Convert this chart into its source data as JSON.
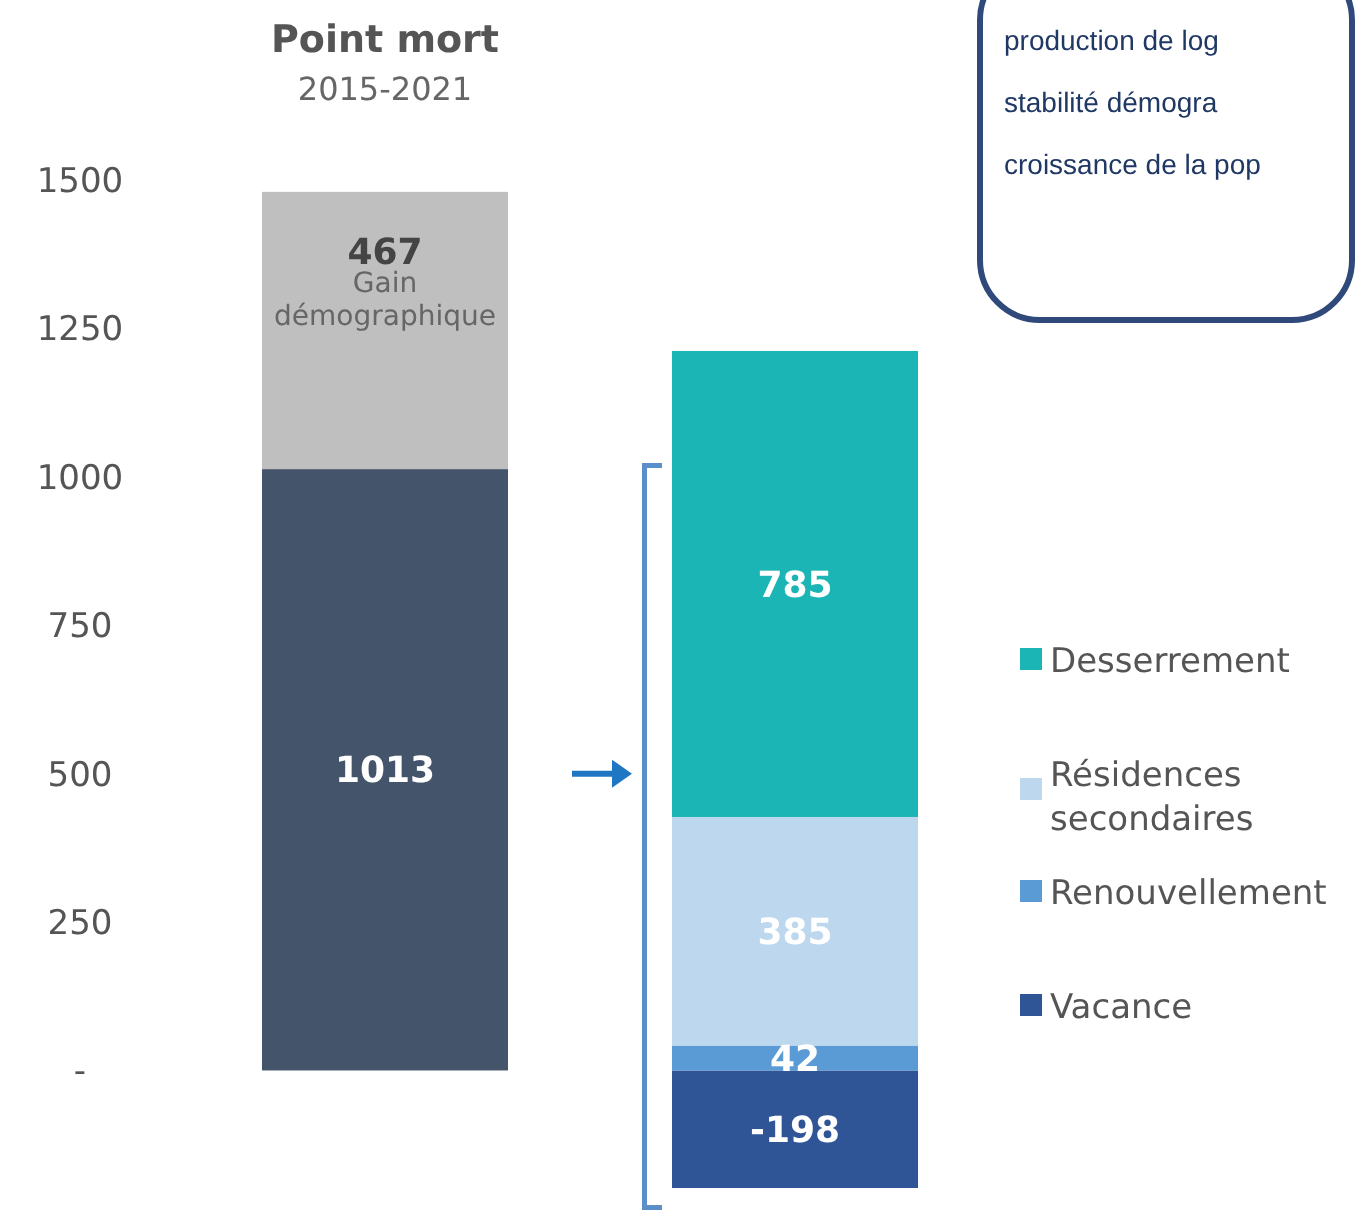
{
  "chart_data": {
    "type": "bar",
    "title": "Point mort",
    "subtitle": "2015-2021",
    "categories": [
      null,
      null
    ],
    "stacked": true,
    "series": [
      {
        "color": "#44546a",
        "values": [
          1013,
          null
        ]
      },
      {
        "color": "#bfbfbf",
        "values": [
          467,
          null
        ]
      },
      {
        "name": "Vacance",
        "color": "#2f5597",
        "values": [
          null,
          -198
        ]
      },
      {
        "name": "Renouvellement",
        "color": "#5b9bd5",
        "values": [
          null,
          42
        ]
      },
      {
        "name": "Résidences secondaires",
        "color": "#bdd7ee",
        "values": [
          null,
          385
        ]
      },
      {
        "name": "Desserrement",
        "color": "#1cb5b5",
        "values": [
          null,
          785
        ]
      }
    ],
    "ylim": [
      -198,
      1500
    ],
    "yticks": [
      {
        "value": 0,
        "label": "-"
      },
      250,
      500,
      750,
      1000,
      1250,
      1500
    ],
    "data_labels": true,
    "legend": "right",
    "grid": false,
    "annotations": [
      "Gain démographique",
      "production de log",
      "stabilité démogra",
      "croissance de la pop"
    ]
  }
}
